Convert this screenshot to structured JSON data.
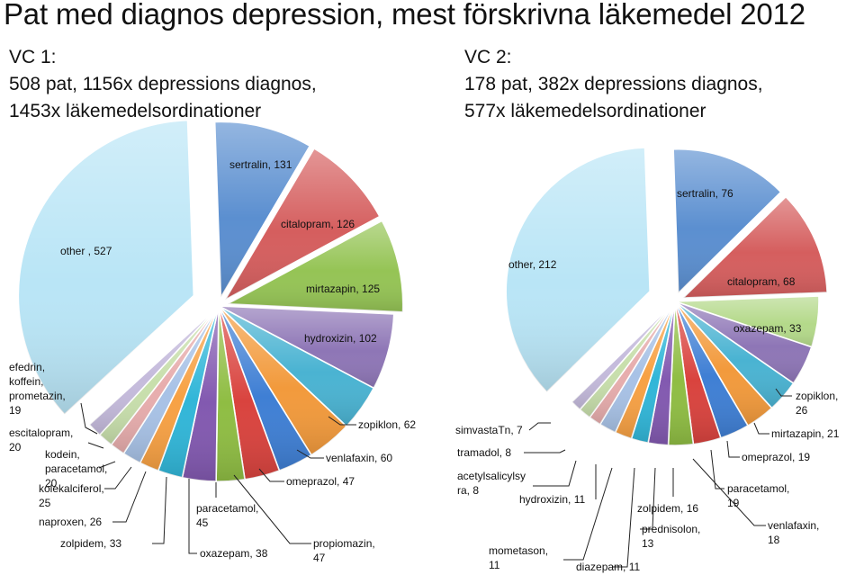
{
  "title": "Pat med diagnos depression, mest förskrivna läkemedel 2012",
  "chart_data": [
    {
      "type": "pie",
      "title": "VC 1:",
      "subtitle_lines": [
        "508 pat, 1156x depressions diagnos,",
        "1453x läkemedelsordinationer"
      ],
      "slices": [
        {
          "label": "sertralin",
          "value": 131,
          "color": "#5b8fd0",
          "text": "sertralin, 131"
        },
        {
          "label": "citalopram",
          "value": 126,
          "color": "#d55e5e",
          "text": "citalopram, 126"
        },
        {
          "label": "mirtazapin",
          "value": 125,
          "color": "#95c455",
          "text": "mirtazapin, 125"
        },
        {
          "label": "hydroxizin",
          "value": 102,
          "color": "#8e76b6",
          "text": "hydroxizin, 102"
        },
        {
          "label": "zopiklon",
          "value": 62,
          "color": "#4ab3d2",
          "text": "zopiklon, 62"
        },
        {
          "label": "venlafaxin",
          "value": 60,
          "color": "#f29a3c",
          "text": "venlafaxin, 60"
        },
        {
          "label": "omeprazol",
          "value": 47,
          "color": "#3f7fd4",
          "text": "omeprazol, 47"
        },
        {
          "label": "propiomazin",
          "value": 47,
          "color": "#d9433e",
          "text": "propiomazin,\n47"
        },
        {
          "label": "oxazepam",
          "value": 38,
          "color": "#8fbd43",
          "text": "oxazepam, 38"
        },
        {
          "label": "paracetamol",
          "value": 45,
          "color": "#8259b0",
          "text": "paracetamol,\n45"
        },
        {
          "label": "zolpidem",
          "value": 33,
          "color": "#31b6d8",
          "text": "zolpidem, 33"
        },
        {
          "label": "naproxen",
          "value": 26,
          "color": "#f7a144",
          "text": "naproxen, 26"
        },
        {
          "label": "kolekalciferol",
          "value": 25,
          "color": "#a8c2e6",
          "text": "kolekalciferol,\n25"
        },
        {
          "label": "kodein, paracetamol",
          "value": 20,
          "color": "#e7adad",
          "text": "kodein,\nparacetamol,\n20"
        },
        {
          "label": "escitalopram",
          "value": 20,
          "color": "#c8dfac",
          "text": "escitalopram,\n20"
        },
        {
          "label": "efedrin, koffein, prometazin",
          "value": 19,
          "color": "#c5bbdc",
          "text": "efedrin,\nkoffein,\nprometazin,\n19"
        },
        {
          "label": "other",
          "value": 527,
          "color": "#b9e5f6",
          "text": "other , 527"
        }
      ]
    },
    {
      "type": "pie",
      "title": "VC 2:",
      "subtitle_lines": [
        "178 pat, 382x depressions diagnos,",
        "577x läkemedelsordinationer"
      ],
      "slices": [
        {
          "label": "sertralin",
          "value": 76,
          "color": "#5b8fd0",
          "text": "sertralin, 76"
        },
        {
          "label": "citalopram",
          "value": 68,
          "color": "#d55e5e",
          "text": "citalopram, 68"
        },
        {
          "label": "oxazepam",
          "value": 33,
          "color": "#b4d98a",
          "text": "oxazepam, 33"
        },
        {
          "label": "zopiklon",
          "value": 26,
          "color": "#8e76b6",
          "text": "zopiklon,\n26"
        },
        {
          "label": "mirtazapin",
          "value": 21,
          "color": "#4ab3d2",
          "text": "mirtazapin, 21"
        },
        {
          "label": "omeprazol",
          "value": 19,
          "color": "#f29a3c",
          "text": "omeprazol, 19"
        },
        {
          "label": "paracetamol",
          "value": 19,
          "color": "#3f7fd4",
          "text": "paracetamol,\n19"
        },
        {
          "label": "venlafaxin",
          "value": 18,
          "color": "#d9433e",
          "text": "venlafaxin,\n18"
        },
        {
          "label": "zolpidem",
          "value": 16,
          "color": "#8fbd43",
          "text": "zolpidem, 16"
        },
        {
          "label": "prednisolon",
          "value": 13,
          "color": "#8259b0",
          "text": "prednisolon,\n13"
        },
        {
          "label": "diazepam",
          "value": 11,
          "color": "#31b6d8",
          "text": "diazepam, 11"
        },
        {
          "label": "mometason",
          "value": 11,
          "color": "#f7a144",
          "text": "mometason,\n11"
        },
        {
          "label": "hydroxizin",
          "value": 11,
          "color": "#a8c2e6",
          "text": "hydroxizin, 11"
        },
        {
          "label": "acetylsalicylsyra",
          "value": 8,
          "color": "#e7adad",
          "text": "acetylsalicylsy\nra, 8"
        },
        {
          "label": "tramadol",
          "value": 8,
          "color": "#c8dfac",
          "text": "tramadol, 8"
        },
        {
          "label": "simvastatin",
          "value": 7,
          "color": "#c5bbdc",
          "text": "simvastaTn, 7"
        },
        {
          "label": "other",
          "value": 212,
          "color": "#b9e5f6",
          "text": "other, 212"
        }
      ]
    }
  ]
}
